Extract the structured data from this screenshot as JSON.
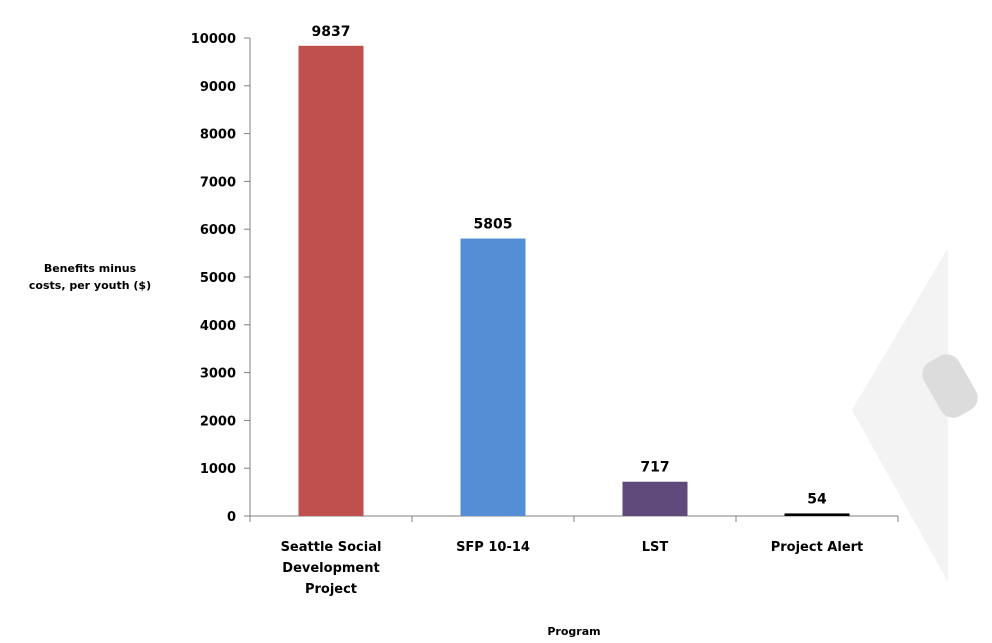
{
  "chart_data": {
    "type": "bar",
    "categories": [
      [
        "Seattle  Social",
        "Development",
        "Project"
      ],
      [
        "SFP 10-14"
      ],
      [
        "LST"
      ],
      [
        "Project Alert"
      ]
    ],
    "values": [
      9837,
      5805,
      717,
      54
    ],
    "data_labels": [
      "9837",
      "5805",
      "717",
      "54"
    ],
    "bar_colors": [
      "#C0504D",
      "#558ED5",
      "#604A7B",
      "#000000"
    ],
    "title": "",
    "xlabel": "Program",
    "ylabel": [
      "Benefits minus",
      "costs, per youth ($)"
    ],
    "ylim": [
      0,
      10000
    ],
    "yticks": [
      "0",
      "1000",
      "2000",
      "3000",
      "4000",
      "5000",
      "6000",
      "7000",
      "8000",
      "9000",
      "10000"
    ],
    "grid": false,
    "legend": "none"
  }
}
